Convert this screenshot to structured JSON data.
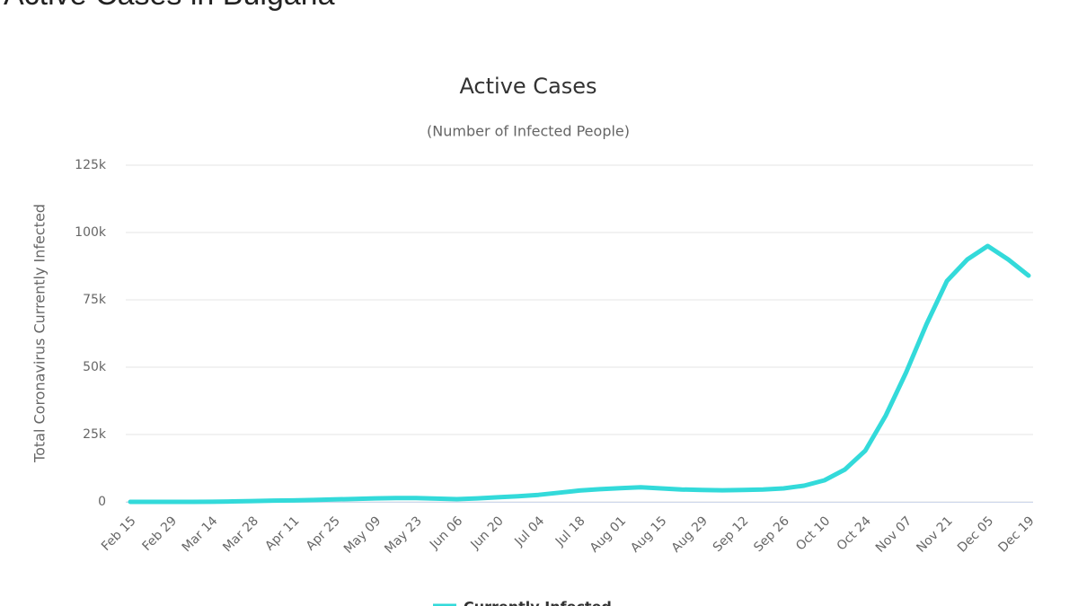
{
  "heading": "Active Cases in Bulgaria",
  "chart_data": {
    "type": "line",
    "title": "Active Cases",
    "subtitle": "(Number of Infected People)",
    "y_label": "Total Coronavirus Currently Infected",
    "categories": [
      "Feb 15",
      null,
      "Feb 29",
      null,
      "Mar 14",
      null,
      "Mar 28",
      null,
      "Apr 11",
      null,
      "Apr 25",
      null,
      "May 09",
      null,
      "May 23",
      null,
      "Jun 06",
      null,
      "Jun 20",
      null,
      "Jul 04",
      null,
      "Jul 18",
      null,
      "Aug 01",
      null,
      "Aug 15",
      null,
      "Aug 29",
      null,
      "Sep 12",
      null,
      "Sep 26",
      null,
      "Oct 10",
      null,
      "Oct 24",
      null,
      "Nov 07",
      null,
      "Nov 21",
      null,
      "Dec 05",
      null,
      "Dec 19"
    ],
    "series": [
      {
        "name": "Currently Infected",
        "color": "#33dada",
        "values": [
          0,
          0,
          0,
          0,
          50,
          150,
          300,
          450,
          550,
          700,
          900,
          1100,
          1300,
          1400,
          1400,
          1200,
          1000,
          1300,
          1700,
          2100,
          2600,
          3400,
          4200,
          4700,
          5100,
          5400,
          5000,
          4600,
          4400,
          4300,
          4400,
          4600,
          5000,
          6000,
          8000,
          12000,
          19000,
          32000,
          48000,
          66000,
          82000,
          90000,
          95000,
          90000,
          84000
        ]
      }
    ],
    "ylim": [
      0,
      125000
    ],
    "yticks": [
      0,
      {
        "value": 25000,
        "label": "25k"
      },
      {
        "value": 50000,
        "label": "50k"
      },
      {
        "value": 75000,
        "label": "75k"
      },
      {
        "value": 100000,
        "label": "100k"
      },
      {
        "value": 125000,
        "label": "125k"
      }
    ],
    "grid": true
  }
}
